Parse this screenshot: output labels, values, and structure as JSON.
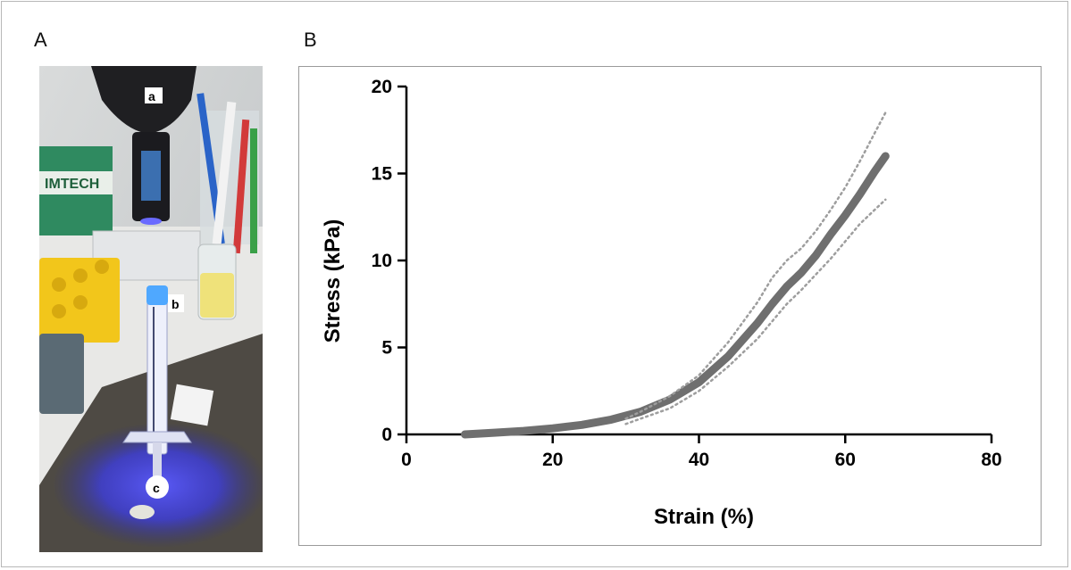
{
  "figure": {
    "panel_a_label": "A",
    "panel_b_label": "B"
  },
  "photo": {
    "label_a": "a",
    "label_b": "b",
    "label_c": "c",
    "box_text": "IMTECH"
  },
  "colors": {
    "curve": "#6f6f6f",
    "ci_band": "#9e9e9e",
    "axis": "#000000",
    "uv_light": "#3c3cf0"
  },
  "chart_data": {
    "type": "line",
    "xlabel": "Strain (%)",
    "ylabel": "Stress (kPa)",
    "xlim": [
      0,
      80
    ],
    "ylim": [
      0,
      20
    ],
    "xticks": [
      0,
      20,
      40,
      60,
      80
    ],
    "yticks": [
      0,
      5,
      10,
      15,
      20
    ],
    "grid": false,
    "series": [
      {
        "style": "mean",
        "x": [
          8,
          12,
          16,
          20,
          24,
          28,
          32,
          36,
          40,
          44,
          48,
          50,
          52,
          54,
          56,
          58,
          60,
          62,
          64,
          65.5
        ],
        "y": [
          0.0,
          0.1,
          0.2,
          0.35,
          0.55,
          0.85,
          1.3,
          2.0,
          3.0,
          4.5,
          6.4,
          7.5,
          8.5,
          9.3,
          10.3,
          11.5,
          12.6,
          13.8,
          15.1,
          16.0
        ]
      },
      {
        "style": "upper",
        "x": [
          30,
          32,
          36,
          40,
          44,
          48,
          50,
          52,
          54,
          56,
          58,
          60,
          62,
          64,
          65.5
        ],
        "y": [
          0.9,
          1.3,
          2.2,
          3.4,
          5.3,
          7.6,
          9.0,
          10.0,
          10.7,
          11.7,
          12.9,
          14.2,
          15.7,
          17.3,
          18.5
        ]
      },
      {
        "style": "lower",
        "x": [
          30,
          32,
          36,
          40,
          44,
          48,
          50,
          52,
          54,
          56,
          58,
          60,
          62,
          64,
          65.5
        ],
        "y": [
          0.6,
          0.9,
          1.5,
          2.5,
          3.9,
          5.5,
          6.5,
          7.5,
          8.3,
          9.2,
          10.1,
          11.1,
          12.1,
          12.9,
          13.5
        ]
      }
    ]
  }
}
